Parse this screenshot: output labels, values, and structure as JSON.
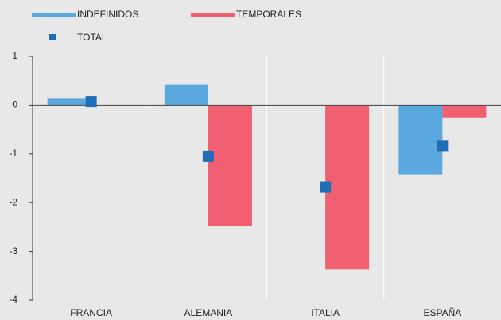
{
  "chart_data": {
    "type": "bar",
    "categories": [
      "FRANCIA",
      "ALEMANIA",
      "ITALIA",
      "ESPAÑA"
    ],
    "series": [
      {
        "name": "INDEFINIDOS",
        "color": "#5aa8dd",
        "values": [
          0.13,
          0.42,
          0,
          -1.42
        ]
      },
      {
        "name": "TEMPORALES",
        "color": "#f15f72",
        "values": [
          0,
          -2.48,
          -3.37,
          -0.25
        ]
      },
      {
        "name": "TOTAL",
        "color": "#1f6db5",
        "type": "marker",
        "values": [
          0.07,
          -1.05,
          -1.68,
          -0.83
        ]
      }
    ],
    "ylim": [
      -4,
      1
    ],
    "yticks": [
      -4,
      -3,
      -2,
      -1,
      0,
      1
    ]
  }
}
